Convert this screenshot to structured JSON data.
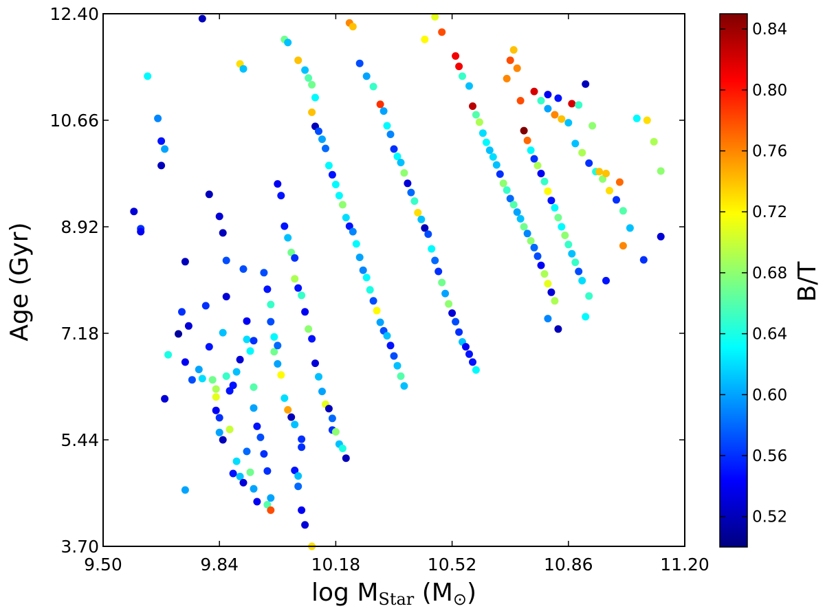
{
  "chart_data": {
    "type": "scatter",
    "xlabel": "log M",
    "xlabel_sub": "Star",
    "xlabel_unit_open": " (M",
    "xlabel_unit_sub": "⊙",
    "xlabel_unit_close": ")",
    "ylabel": "Age (Gyr)",
    "colorbar_label": "B/T",
    "xlim": [
      9.5,
      11.2
    ],
    "ylim": [
      3.7,
      12.4
    ],
    "clim": [
      0.5,
      0.85
    ],
    "x_ticks": [
      "9.50",
      "9.84",
      "10.18",
      "10.52",
      "10.86",
      "11.20"
    ],
    "y_ticks": [
      "3.70",
      "5.44",
      "7.18",
      "8.92",
      "10.66",
      "12.40"
    ],
    "colorbar_ticks": [
      "0.52",
      "0.56",
      "0.60",
      "0.64",
      "0.68",
      "0.72",
      "0.76",
      "0.80",
      "0.84"
    ],
    "colormap": "jet",
    "colormap_stops": [
      "#00007f",
      "#0000ff",
      "#007fff",
      "#00ffff",
      "#7fff7f",
      "#ffff00",
      "#ff7f00",
      "#ff0000",
      "#7f0000"
    ],
    "grid": false,
    "points": [
      [
        9.79,
        12.32,
        0.52
      ],
      [
        9.59,
        9.17,
        0.53
      ],
      [
        9.61,
        8.89,
        0.56
      ],
      [
        9.61,
        8.84,
        0.54
      ],
      [
        9.63,
        11.38,
        0.63
      ],
      [
        9.66,
        10.69,
        0.59
      ],
      [
        9.67,
        10.32,
        0.55
      ],
      [
        9.68,
        10.19,
        0.6
      ],
      [
        9.67,
        9.92,
        0.52
      ],
      [
        9.69,
        6.83,
        0.64
      ],
      [
        9.68,
        6.11,
        0.53
      ],
      [
        9.72,
        7.17,
        0.51
      ],
      [
        9.73,
        7.53,
        0.56
      ],
      [
        9.74,
        8.35,
        0.52
      ],
      [
        9.75,
        7.3,
        0.53
      ],
      [
        9.74,
        6.71,
        0.54
      ],
      [
        9.76,
        6.42,
        0.57
      ],
      [
        9.78,
        6.59,
        0.6
      ],
      [
        9.79,
        6.44,
        0.62
      ],
      [
        9.74,
        4.62,
        0.6
      ],
      [
        9.81,
        9.45,
        0.52
      ],
      [
        9.8,
        7.63,
        0.56
      ],
      [
        9.81,
        6.96,
        0.55
      ],
      [
        9.82,
        6.42,
        0.67
      ],
      [
        9.83,
        6.27,
        0.69
      ],
      [
        9.83,
        6.14,
        0.71
      ],
      [
        9.83,
        5.92,
        0.54
      ],
      [
        9.84,
        5.8,
        0.56
      ],
      [
        9.84,
        5.56,
        0.6
      ],
      [
        9.85,
        5.44,
        0.52
      ],
      [
        9.84,
        9.09,
        0.53
      ],
      [
        9.85,
        8.82,
        0.52
      ],
      [
        9.86,
        8.37,
        0.57
      ],
      [
        9.86,
        7.78,
        0.53
      ],
      [
        9.85,
        7.19,
        0.61
      ],
      [
        9.86,
        6.48,
        0.65
      ],
      [
        9.87,
        6.24,
        0.55
      ],
      [
        9.88,
        6.33,
        0.55
      ],
      [
        9.89,
        6.55,
        0.61
      ],
      [
        9.9,
        6.75,
        0.53
      ],
      [
        9.87,
        5.61,
        0.7
      ],
      [
        9.89,
        5.09,
        0.62
      ],
      [
        9.88,
        4.89,
        0.55
      ],
      [
        9.9,
        4.84,
        0.61
      ],
      [
        9.91,
        4.74,
        0.53
      ],
      [
        9.92,
        5.25,
        0.58
      ],
      [
        9.93,
        4.91,
        0.67
      ],
      [
        9.94,
        4.64,
        0.6
      ],
      [
        9.95,
        4.43,
        0.54
      ],
      [
        9.9,
        11.58,
        0.73
      ],
      [
        9.91,
        11.5,
        0.61
      ],
      [
        9.91,
        8.23,
        0.57
      ],
      [
        9.92,
        7.38,
        0.54
      ],
      [
        9.92,
        7.08,
        0.62
      ],
      [
        9.93,
        6.89,
        0.63
      ],
      [
        9.94,
        7.06,
        0.56
      ],
      [
        9.94,
        6.3,
        0.66
      ],
      [
        9.94,
        5.96,
        0.6
      ],
      [
        9.95,
        5.66,
        0.55
      ],
      [
        9.96,
        5.48,
        0.57
      ],
      [
        9.97,
        5.21,
        0.56
      ],
      [
        9.98,
        4.93,
        0.56
      ],
      [
        9.98,
        4.38,
        0.66
      ],
      [
        9.99,
        4.49,
        0.6
      ],
      [
        9.99,
        4.29,
        0.78
      ],
      [
        9.97,
        8.17,
        0.57
      ],
      [
        9.98,
        7.9,
        0.55
      ],
      [
        9.99,
        7.65,
        0.65
      ],
      [
        9.99,
        7.37,
        0.57
      ],
      [
        10.0,
        7.12,
        0.63
      ],
      [
        10.0,
        6.88,
        0.67
      ],
      [
        10.01,
        6.98,
        0.58
      ],
      [
        10.01,
        6.68,
        0.6
      ],
      [
        10.02,
        6.5,
        0.72
      ],
      [
        10.03,
        6.12,
        0.62
      ],
      [
        10.04,
        5.93,
        0.75
      ],
      [
        10.05,
        5.81,
        0.52
      ],
      [
        10.06,
        5.69,
        0.61
      ],
      [
        10.08,
        5.45,
        0.56
      ],
      [
        10.08,
        5.32,
        0.56
      ],
      [
        10.06,
        4.94,
        0.55
      ],
      [
        10.07,
        4.85,
        0.61
      ],
      [
        10.07,
        4.68,
        0.58
      ],
      [
        10.08,
        4.29,
        0.54
      ],
      [
        10.09,
        4.05,
        0.53
      ],
      [
        10.11,
        3.7,
        0.73
      ],
      [
        10.01,
        9.62,
        0.54
      ],
      [
        10.02,
        9.43,
        0.55
      ],
      [
        10.03,
        8.93,
        0.55
      ],
      [
        10.04,
        8.74,
        0.61
      ],
      [
        10.05,
        8.5,
        0.67
      ],
      [
        10.06,
        8.41,
        0.56
      ],
      [
        10.06,
        8.07,
        0.69
      ],
      [
        10.07,
        7.92,
        0.55
      ],
      [
        10.08,
        7.8,
        0.65
      ],
      [
        10.09,
        7.53,
        0.54
      ],
      [
        10.1,
        7.25,
        0.68
      ],
      [
        10.11,
        7.09,
        0.55
      ],
      [
        10.12,
        6.69,
        0.53
      ],
      [
        10.13,
        6.47,
        0.61
      ],
      [
        10.14,
        6.23,
        0.6
      ],
      [
        10.15,
        6.02,
        0.71
      ],
      [
        10.16,
        5.95,
        0.52
      ],
      [
        10.17,
        5.79,
        0.58
      ],
      [
        10.17,
        5.6,
        0.56
      ],
      [
        10.18,
        5.57,
        0.68
      ],
      [
        10.19,
        5.37,
        0.61
      ],
      [
        10.2,
        5.3,
        0.64
      ],
      [
        10.21,
        5.14,
        0.52
      ],
      [
        10.03,
        11.98,
        0.67
      ],
      [
        10.04,
        11.93,
        0.61
      ],
      [
        10.07,
        11.64,
        0.74
      ],
      [
        10.09,
        11.48,
        0.61
      ],
      [
        10.1,
        11.35,
        0.66
      ],
      [
        10.11,
        11.24,
        0.67
      ],
      [
        10.12,
        11.03,
        0.63
      ],
      [
        10.11,
        10.79,
        0.74
      ],
      [
        10.12,
        10.56,
        0.52
      ],
      [
        10.13,
        10.48,
        0.57
      ],
      [
        10.14,
        10.35,
        0.6
      ],
      [
        10.15,
        10.2,
        0.58
      ],
      [
        10.16,
        9.92,
        0.63
      ],
      [
        10.17,
        9.77,
        0.55
      ],
      [
        10.18,
        9.61,
        0.63
      ],
      [
        10.19,
        9.43,
        0.63
      ],
      [
        10.2,
        9.28,
        0.68
      ],
      [
        10.21,
        9.07,
        0.62
      ],
      [
        10.22,
        8.93,
        0.55
      ],
      [
        10.23,
        8.84,
        0.59
      ],
      [
        10.24,
        8.64,
        0.63
      ],
      [
        10.25,
        8.42,
        0.6
      ],
      [
        10.26,
        8.21,
        0.59
      ],
      [
        10.27,
        8.09,
        0.63
      ],
      [
        10.28,
        7.89,
        0.64
      ],
      [
        10.29,
        7.71,
        0.57
      ],
      [
        10.3,
        7.55,
        0.72
      ],
      [
        10.31,
        7.36,
        0.6
      ],
      [
        10.32,
        7.22,
        0.57
      ],
      [
        10.33,
        7.14,
        0.61
      ],
      [
        10.34,
        6.98,
        0.55
      ],
      [
        10.35,
        6.81,
        0.57
      ],
      [
        10.36,
        6.65,
        0.61
      ],
      [
        10.37,
        6.48,
        0.66
      ],
      [
        10.38,
        6.32,
        0.61
      ],
      [
        10.22,
        12.25,
        0.76
      ],
      [
        10.23,
        12.19,
        0.74
      ],
      [
        10.25,
        11.59,
        0.57
      ],
      [
        10.27,
        11.38,
        0.6
      ],
      [
        10.29,
        11.21,
        0.65
      ],
      [
        10.31,
        10.92,
        0.79
      ],
      [
        10.32,
        10.81,
        0.6
      ],
      [
        10.33,
        10.57,
        0.63
      ],
      [
        10.34,
        10.43,
        0.59
      ],
      [
        10.35,
        10.19,
        0.56
      ],
      [
        10.36,
        10.07,
        0.63
      ],
      [
        10.37,
        9.97,
        0.61
      ],
      [
        10.38,
        9.8,
        0.68
      ],
      [
        10.39,
        9.63,
        0.53
      ],
      [
        10.4,
        9.48,
        0.58
      ],
      [
        10.41,
        9.34,
        0.65
      ],
      [
        10.42,
        9.15,
        0.73
      ],
      [
        10.43,
        9.04,
        0.61
      ],
      [
        10.44,
        8.9,
        0.52
      ],
      [
        10.45,
        8.8,
        0.57
      ],
      [
        10.46,
        8.56,
        0.63
      ],
      [
        10.47,
        8.37,
        0.58
      ],
      [
        10.48,
        8.19,
        0.56
      ],
      [
        10.49,
        8.01,
        0.67
      ],
      [
        10.5,
        7.83,
        0.6
      ],
      [
        10.51,
        7.66,
        0.68
      ],
      [
        10.52,
        7.51,
        0.53
      ],
      [
        10.53,
        7.37,
        0.57
      ],
      [
        10.54,
        7.2,
        0.56
      ],
      [
        10.55,
        7.04,
        0.61
      ],
      [
        10.56,
        6.96,
        0.54
      ],
      [
        10.57,
        6.84,
        0.55
      ],
      [
        10.58,
        6.71,
        0.55
      ],
      [
        10.59,
        6.58,
        0.63
      ],
      [
        10.44,
        11.98,
        0.72
      ],
      [
        10.47,
        12.35,
        0.71
      ],
      [
        10.49,
        12.1,
        0.78
      ],
      [
        10.53,
        11.71,
        0.81
      ],
      [
        10.54,
        11.54,
        0.81
      ],
      [
        10.55,
        11.38,
        0.65
      ],
      [
        10.57,
        11.22,
        0.61
      ],
      [
        10.58,
        10.89,
        0.83
      ],
      [
        10.59,
        10.75,
        0.66
      ],
      [
        10.6,
        10.63,
        0.69
      ],
      [
        10.61,
        10.45,
        0.62
      ],
      [
        10.62,
        10.3,
        0.63
      ],
      [
        10.63,
        10.17,
        0.61
      ],
      [
        10.64,
        10.06,
        0.62
      ],
      [
        10.65,
        9.93,
        0.61
      ],
      [
        10.66,
        9.78,
        0.56
      ],
      [
        10.67,
        9.63,
        0.68
      ],
      [
        10.68,
        9.52,
        0.65
      ],
      [
        10.69,
        9.38,
        0.58
      ],
      [
        10.7,
        9.28,
        0.66
      ],
      [
        10.71,
        9.16,
        0.6
      ],
      [
        10.72,
        9.05,
        0.61
      ],
      [
        10.73,
        8.92,
        0.67
      ],
      [
        10.74,
        8.81,
        0.59
      ],
      [
        10.75,
        8.69,
        0.68
      ],
      [
        10.76,
        8.58,
        0.58
      ],
      [
        10.77,
        8.44,
        0.57
      ],
      [
        10.78,
        8.29,
        0.54
      ],
      [
        10.79,
        8.15,
        0.69
      ],
      [
        10.8,
        7.99,
        0.71
      ],
      [
        10.81,
        7.85,
        0.53
      ],
      [
        10.82,
        7.71,
        0.69
      ],
      [
        10.68,
        11.34,
        0.76
      ],
      [
        10.69,
        11.64,
        0.78
      ],
      [
        10.7,
        11.81,
        0.74
      ],
      [
        10.71,
        11.51,
        0.76
      ],
      [
        10.72,
        10.98,
        0.78
      ],
      [
        10.73,
        10.49,
        0.85
      ],
      [
        10.74,
        10.33,
        0.77
      ],
      [
        10.75,
        10.17,
        0.63
      ],
      [
        10.76,
        10.03,
        0.56
      ],
      [
        10.77,
        9.92,
        0.69
      ],
      [
        10.78,
        9.79,
        0.54
      ],
      [
        10.79,
        9.66,
        0.65
      ],
      [
        10.8,
        9.5,
        0.72
      ],
      [
        10.81,
        9.35,
        0.55
      ],
      [
        10.82,
        9.23,
        0.63
      ],
      [
        10.83,
        9.07,
        0.67
      ],
      [
        10.84,
        8.92,
        0.63
      ],
      [
        10.85,
        8.78,
        0.68
      ],
      [
        10.86,
        8.63,
        0.65
      ],
      [
        10.87,
        8.48,
        0.61
      ],
      [
        10.88,
        8.34,
        0.65
      ],
      [
        10.89,
        8.19,
        0.57
      ],
      [
        10.9,
        8.04,
        0.62
      ],
      [
        10.92,
        7.79,
        0.65
      ],
      [
        10.76,
        11.13,
        0.82
      ],
      [
        10.78,
        10.98,
        0.65
      ],
      [
        10.8,
        10.85,
        0.6
      ],
      [
        10.82,
        10.75,
        0.76
      ],
      [
        10.84,
        10.68,
        0.74
      ],
      [
        10.86,
        10.62,
        0.61
      ],
      [
        10.88,
        10.28,
        0.61
      ],
      [
        10.9,
        10.13,
        0.69
      ],
      [
        10.92,
        9.96,
        0.56
      ],
      [
        10.94,
        9.82,
        0.64
      ],
      [
        10.96,
        9.7,
        0.68
      ],
      [
        10.98,
        9.51,
        0.73
      ],
      [
        11.0,
        9.36,
        0.56
      ],
      [
        11.02,
        9.18,
        0.66
      ],
      [
        11.04,
        8.9,
        0.61
      ],
      [
        10.8,
        11.08,
        0.54
      ],
      [
        10.83,
        11.02,
        0.55
      ],
      [
        10.87,
        10.93,
        0.82
      ],
      [
        10.89,
        10.91,
        0.65
      ],
      [
        10.91,
        11.25,
        0.52
      ],
      [
        10.93,
        10.57,
        0.68
      ],
      [
        10.95,
        9.82,
        0.74
      ],
      [
        10.97,
        9.79,
        0.74
      ],
      [
        11.01,
        9.65,
        0.77
      ],
      [
        11.06,
        10.69,
        0.63
      ],
      [
        11.09,
        10.66,
        0.73
      ],
      [
        11.11,
        10.31,
        0.69
      ],
      [
        11.13,
        9.83,
        0.68
      ],
      [
        11.02,
        8.61,
        0.76
      ],
      [
        11.13,
        8.76,
        0.53
      ],
      [
        11.08,
        8.38,
        0.56
      ],
      [
        10.97,
        8.04,
        0.55
      ],
      [
        10.91,
        7.45,
        0.63
      ],
      [
        10.83,
        7.25,
        0.52
      ],
      [
        10.8,
        7.42,
        0.59
      ]
    ]
  }
}
